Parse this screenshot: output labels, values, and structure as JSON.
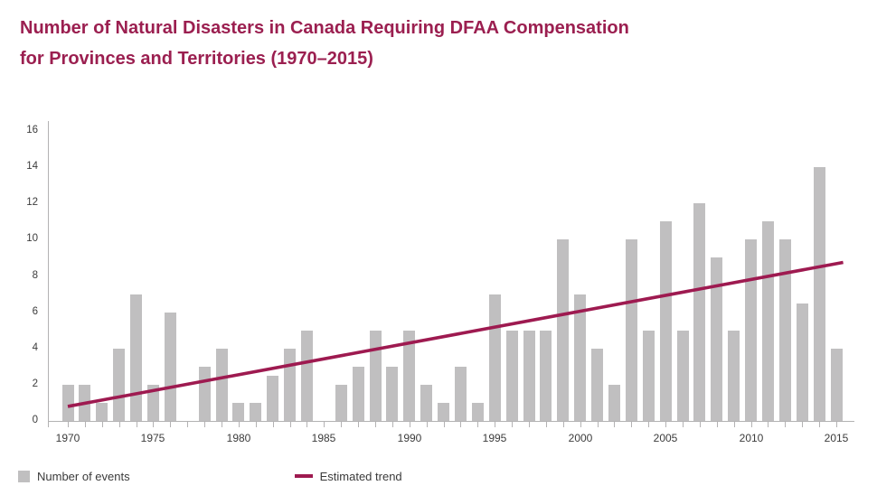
{
  "title": {
    "line1": "Number of Natural Disasters in Canada Requiring DFAA Compensation",
    "line2": "for Provinces and Territories (1970–2015)"
  },
  "colors": {
    "title_text": "#9b1f50",
    "bar": "#c0bfc0",
    "trend": "#9e1a50",
    "axis": "#b3b2b3",
    "tick_label": "#3c3c3c",
    "legend_text": "#3a3a3a"
  },
  "legend": {
    "items": [
      {
        "label": "Number of events",
        "swatch": "gray-bar-square"
      },
      {
        "label": "Estimated trend",
        "swatch": "maroon-trend-dash"
      }
    ]
  },
  "chart_data": {
    "type": "bar",
    "title": "Number of Natural Disasters in Canada Requiring DFAA Compensation for Provinces and Territories (1970–2015)",
    "series_name": "Number of events",
    "x": [
      1970,
      1971,
      1972,
      1973,
      1974,
      1975,
      1976,
      1977,
      1978,
      1979,
      1980,
      1981,
      1982,
      1983,
      1984,
      1985,
      1986,
      1987,
      1988,
      1989,
      1990,
      1991,
      1992,
      1993,
      1994,
      1995,
      1996,
      1997,
      1998,
      1999,
      2000,
      2001,
      2002,
      2003,
      2004,
      2005,
      2006,
      2007,
      2008,
      2009,
      2010,
      2011,
      2012,
      2013,
      2014,
      2015
    ],
    "values": [
      2,
      2,
      1,
      4,
      7,
      2,
      6,
      0,
      3,
      4,
      1,
      1,
      2.5,
      4,
      5,
      0,
      2,
      3,
      5,
      3,
      5,
      2,
      1,
      3,
      1,
      7,
      5,
      5,
      5,
      10,
      7,
      4,
      2,
      10,
      5,
      11,
      5,
      12,
      9,
      5,
      10,
      11,
      10,
      6.5,
      14,
      4
    ],
    "xlabel": "",
    "ylabel": "",
    "ylim": [
      0,
      16
    ],
    "ytick_step": 2,
    "yticks": [
      0,
      2,
      4,
      6,
      8,
      10,
      12,
      14,
      16
    ],
    "xtick_labels": [
      "1970",
      "1975",
      "1980",
      "1985",
      "1990",
      "1995",
      "2000",
      "2005",
      "2010",
      "2015"
    ],
    "grid": false,
    "legend_position": "bottom-left",
    "trend": {
      "name": "Estimated trend",
      "x1": 1970,
      "v1": 0.8,
      "x2": 2015.4,
      "v2": 8.75
    }
  }
}
